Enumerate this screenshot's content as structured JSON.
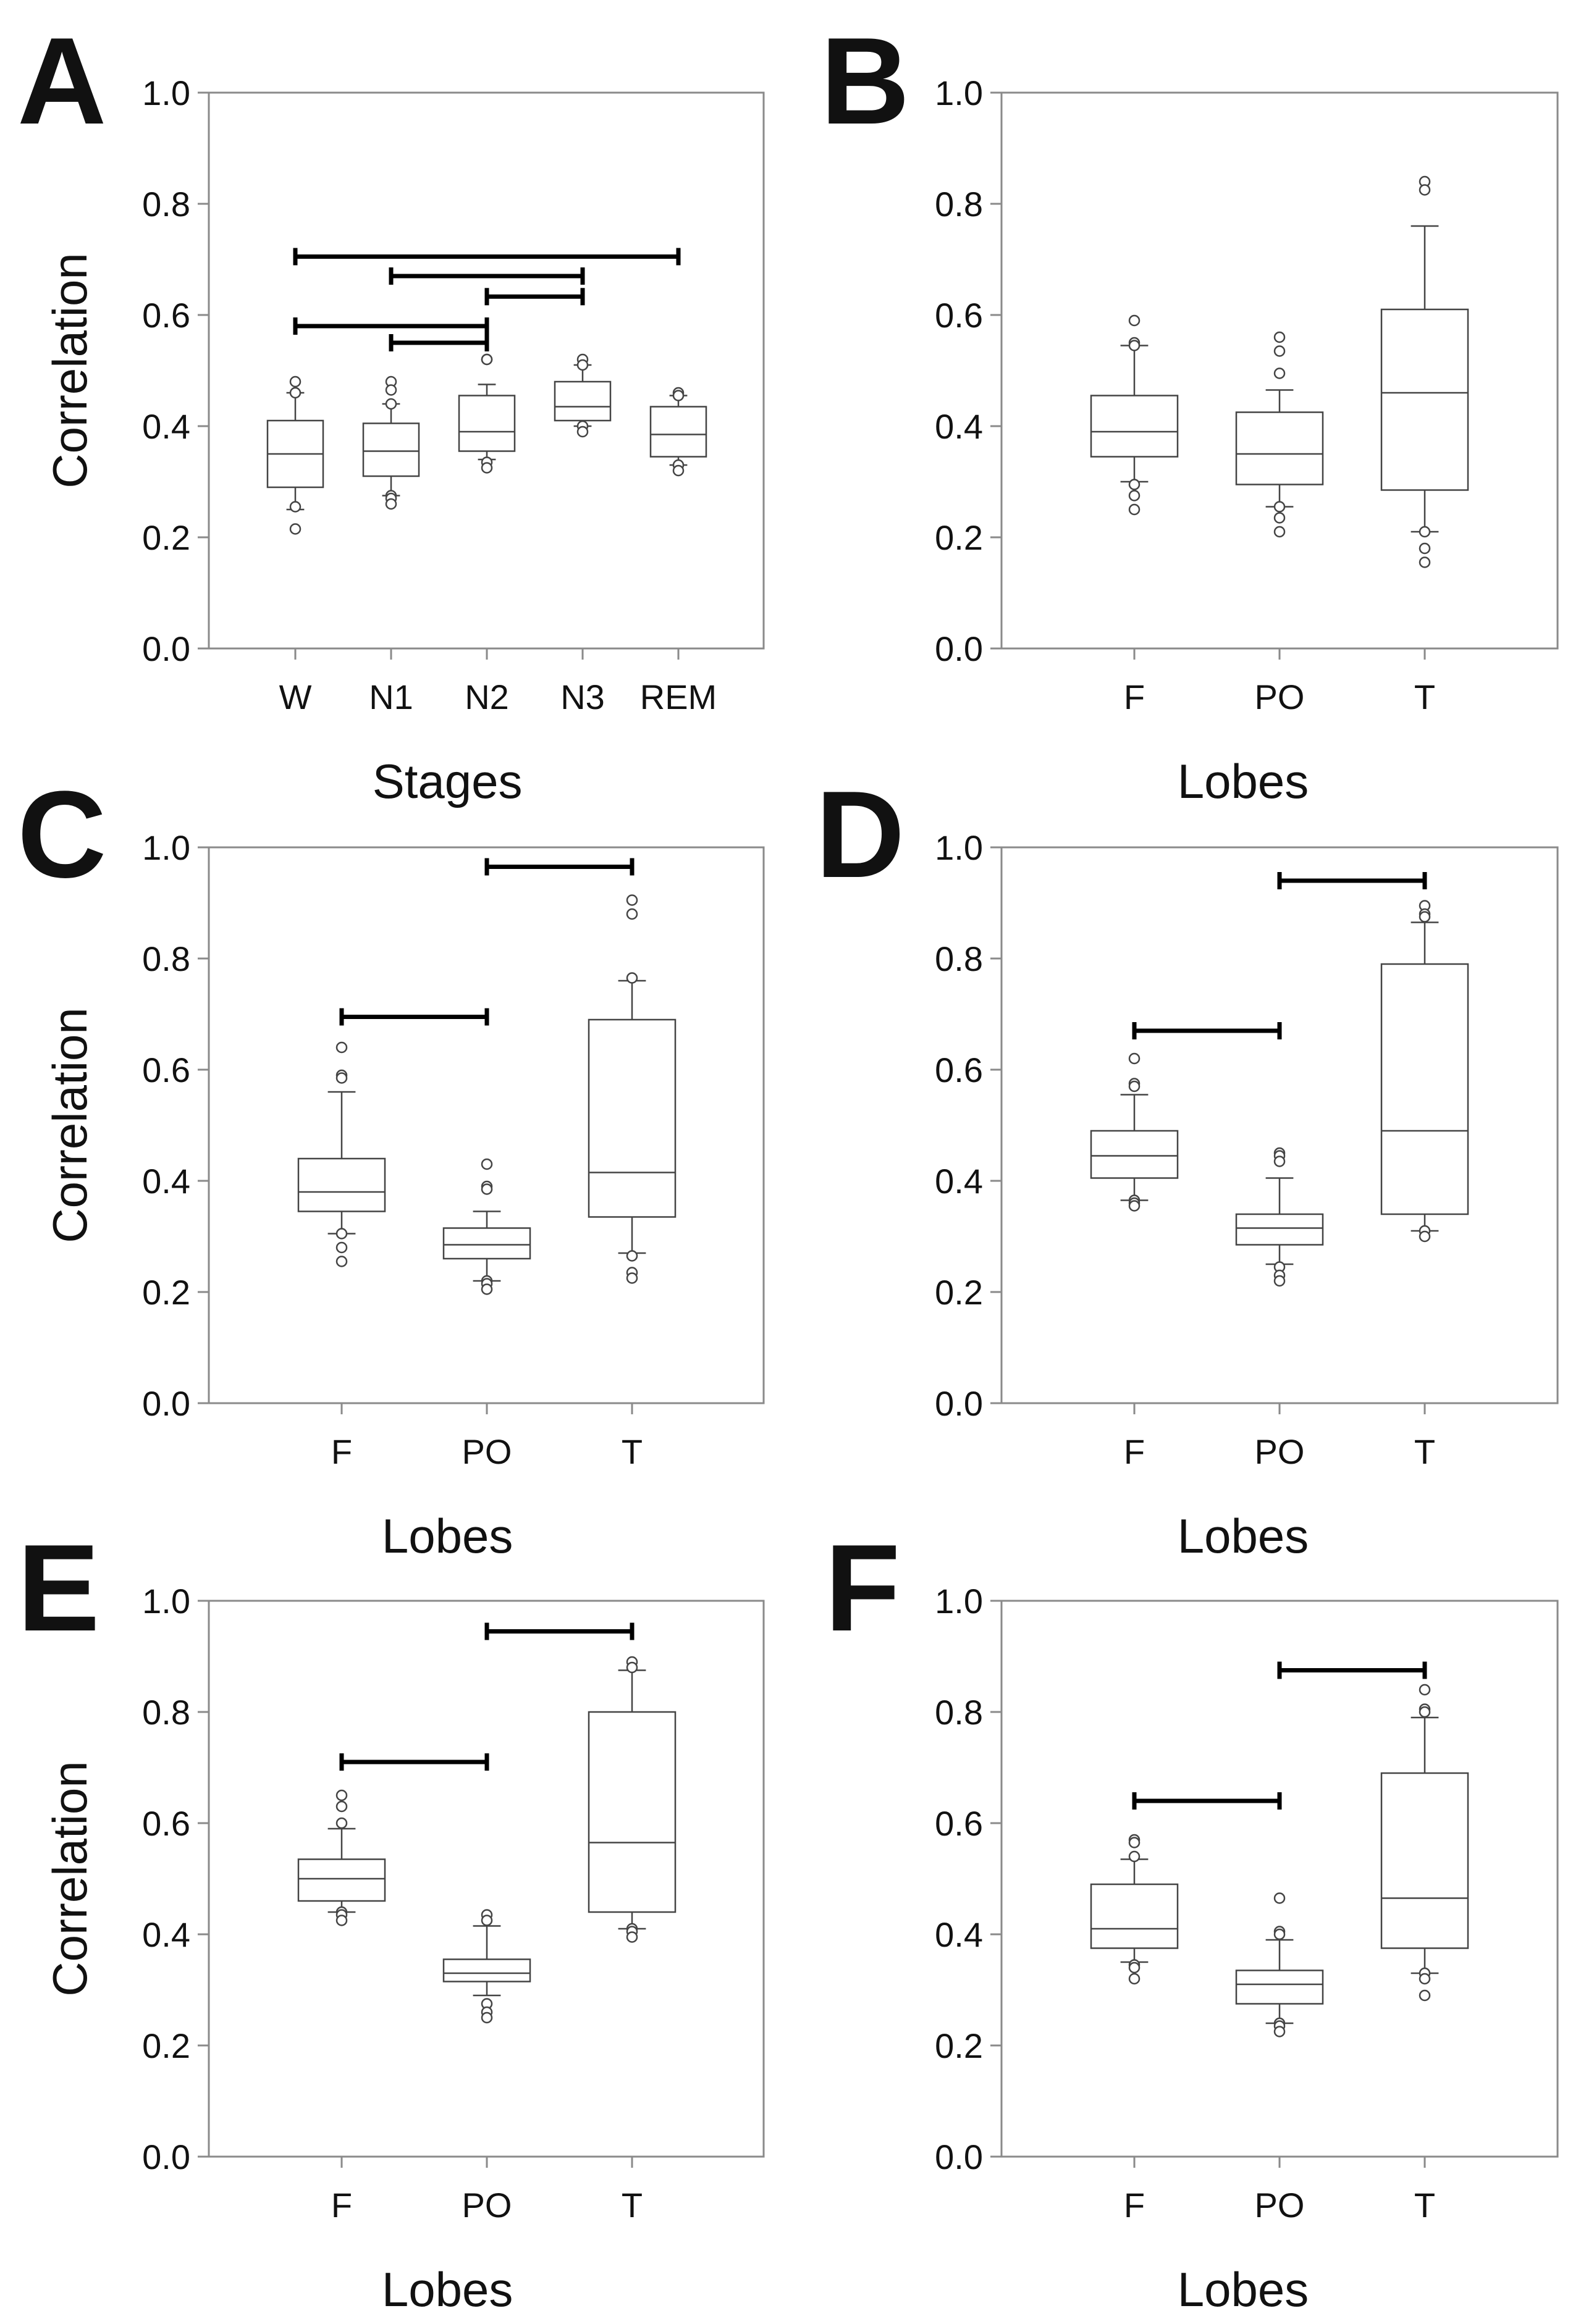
{
  "chart_data": [
    {
      "panel": "A",
      "type": "box",
      "xlabel": "Stages",
      "ylabel": "Correlation",
      "ylim": [
        0,
        1
      ],
      "yticks": [
        "0.0",
        "0.2",
        "0.4",
        "0.6",
        "0.8",
        "1.0"
      ],
      "categories": [
        "W",
        "N1",
        "N2",
        "N3",
        "REM"
      ],
      "boxes": [
        {
          "q1": 0.29,
          "median": 0.35,
          "q3": 0.41,
          "whisker_low": 0.25,
          "whisker_high": 0.46,
          "outliers": [
            0.48,
            0.46,
            0.255,
            0.215
          ]
        },
        {
          "q1": 0.31,
          "median": 0.355,
          "q3": 0.405,
          "whisker_low": 0.275,
          "whisker_high": 0.44,
          "outliers": [
            0.48,
            0.465,
            0.44,
            0.275,
            0.27,
            0.26
          ]
        },
        {
          "q1": 0.355,
          "median": 0.39,
          "q3": 0.455,
          "whisker_low": 0.34,
          "whisker_high": 0.475,
          "outliers": [
            0.52,
            0.52,
            0.335,
            0.325
          ]
        },
        {
          "q1": 0.41,
          "median": 0.435,
          "q3": 0.48,
          "whisker_low": 0.4,
          "whisker_high": 0.51,
          "outliers": [
            0.52,
            0.51,
            0.4,
            0.39
          ]
        },
        {
          "q1": 0.345,
          "median": 0.385,
          "q3": 0.435,
          "whisker_low": 0.33,
          "whisker_high": 0.455,
          "outliers": [
            0.46,
            0.455,
            0.33,
            0.32
          ]
        }
      ],
      "significance": [
        {
          "from": 0,
          "to": 4,
          "y": 0.705
        },
        {
          "from": 1,
          "to": 3,
          "y": 0.67
        },
        {
          "from": 2,
          "to": 3,
          "y": 0.633
        },
        {
          "from": 0,
          "to": 2,
          "y": 0.58
        },
        {
          "from": 1,
          "to": 2,
          "y": 0.55
        }
      ]
    },
    {
      "panel": "B",
      "type": "box",
      "xlabel": "Lobes",
      "ylabel": "",
      "ylim": [
        0,
        1
      ],
      "yticks": [
        "0.0",
        "0.2",
        "0.4",
        "0.6",
        "0.8",
        "1.0"
      ],
      "categories": [
        "F",
        "PO",
        "T"
      ],
      "boxes": [
        {
          "q1": 0.345,
          "median": 0.39,
          "q3": 0.455,
          "whisker_low": 0.3,
          "whisker_high": 0.545,
          "outliers": [
            0.59,
            0.55,
            0.545,
            0.295,
            0.275,
            0.25
          ]
        },
        {
          "q1": 0.295,
          "median": 0.35,
          "q3": 0.425,
          "whisker_low": 0.255,
          "whisker_high": 0.465,
          "outliers": [
            0.56,
            0.535,
            0.495,
            0.255,
            0.235,
            0.21
          ]
        },
        {
          "q1": 0.285,
          "median": 0.46,
          "q3": 0.61,
          "whisker_low": 0.21,
          "whisker_high": 0.76,
          "outliers": [
            0.84,
            0.825,
            0.21,
            0.18,
            0.155
          ]
        }
      ],
      "significance": []
    },
    {
      "panel": "C",
      "type": "box",
      "xlabel": "Lobes",
      "ylabel": "Correlation",
      "ylim": [
        0,
        1
      ],
      "yticks": [
        "0.0",
        "0.2",
        "0.4",
        "0.6",
        "0.8",
        "1.0"
      ],
      "categories": [
        "F",
        "PO",
        "T"
      ],
      "boxes": [
        {
          "q1": 0.345,
          "median": 0.38,
          "q3": 0.44,
          "whisker_low": 0.305,
          "whisker_high": 0.56,
          "outliers": [
            0.64,
            0.59,
            0.585,
            0.305,
            0.28,
            0.255
          ]
        },
        {
          "q1": 0.26,
          "median": 0.285,
          "q3": 0.315,
          "whisker_low": 0.22,
          "whisker_high": 0.345,
          "outliers": [
            0.43,
            0.39,
            0.385,
            0.22,
            0.215,
            0.205
          ]
        },
        {
          "q1": 0.335,
          "median": 0.415,
          "q3": 0.69,
          "whisker_low": 0.27,
          "whisker_high": 0.76,
          "outliers": [
            0.905,
            0.88,
            0.765,
            0.265,
            0.235,
            0.225
          ]
        }
      ],
      "significance": [
        {
          "from": 0,
          "to": 1,
          "y": 0.695
        },
        {
          "from": 1,
          "to": 2,
          "y": 0.965
        }
      ]
    },
    {
      "panel": "D",
      "type": "box",
      "xlabel": "Lobes",
      "ylabel": "",
      "ylim": [
        0,
        1
      ],
      "yticks": [
        "0.0",
        "0.2",
        "0.4",
        "0.6",
        "0.8",
        "1.0"
      ],
      "categories": [
        "F",
        "PO",
        "T"
      ],
      "boxes": [
        {
          "q1": 0.405,
          "median": 0.445,
          "q3": 0.49,
          "whisker_low": 0.365,
          "whisker_high": 0.555,
          "outliers": [
            0.62,
            0.575,
            0.57,
            0.365,
            0.36,
            0.355
          ]
        },
        {
          "q1": 0.285,
          "median": 0.315,
          "q3": 0.34,
          "whisker_low": 0.25,
          "whisker_high": 0.405,
          "outliers": [
            0.45,
            0.445,
            0.435,
            0.245,
            0.23,
            0.22
          ]
        },
        {
          "q1": 0.34,
          "median": 0.49,
          "q3": 0.79,
          "whisker_low": 0.31,
          "whisker_high": 0.865,
          "outliers": [
            0.895,
            0.88,
            0.875,
            0.31,
            0.3
          ]
        }
      ],
      "significance": [
        {
          "from": 0,
          "to": 1,
          "y": 0.67
        },
        {
          "from": 1,
          "to": 2,
          "y": 0.94
        }
      ]
    },
    {
      "panel": "E",
      "type": "box",
      "xlabel": "Lobes",
      "ylabel": "Correlation",
      "ylim": [
        0,
        1
      ],
      "yticks": [
        "0.0",
        "0.2",
        "0.4",
        "0.6",
        "0.8",
        "1.0"
      ],
      "categories": [
        "F",
        "PO",
        "T"
      ],
      "boxes": [
        {
          "q1": 0.46,
          "median": 0.5,
          "q3": 0.535,
          "whisker_low": 0.44,
          "whisker_high": 0.59,
          "outliers": [
            0.65,
            0.63,
            0.6,
            0.44,
            0.435,
            0.425
          ]
        },
        {
          "q1": 0.315,
          "median": 0.33,
          "q3": 0.355,
          "whisker_low": 0.29,
          "whisker_high": 0.415,
          "outliers": [
            0.435,
            0.425,
            0.275,
            0.26,
            0.25
          ]
        },
        {
          "q1": 0.44,
          "median": 0.565,
          "q3": 0.8,
          "whisker_low": 0.41,
          "whisker_high": 0.875,
          "outliers": [
            0.89,
            0.88,
            0.41,
            0.405,
            0.395
          ]
        }
      ],
      "significance": [
        {
          "from": 0,
          "to": 1,
          "y": 0.71
        },
        {
          "from": 1,
          "to": 2,
          "y": 0.945
        }
      ]
    },
    {
      "panel": "F",
      "type": "box",
      "xlabel": "Lobes",
      "ylabel": "",
      "ylim": [
        0,
        1
      ],
      "yticks": [
        "0.0",
        "0.2",
        "0.4",
        "0.6",
        "0.8",
        "1.0"
      ],
      "categories": [
        "F",
        "PO",
        "T"
      ],
      "boxes": [
        {
          "q1": 0.375,
          "median": 0.41,
          "q3": 0.49,
          "whisker_low": 0.35,
          "whisker_high": 0.535,
          "outliers": [
            0.57,
            0.565,
            0.54,
            0.345,
            0.34,
            0.32
          ]
        },
        {
          "q1": 0.275,
          "median": 0.31,
          "q3": 0.335,
          "whisker_low": 0.24,
          "whisker_high": 0.39,
          "outliers": [
            0.465,
            0.405,
            0.4,
            0.24,
            0.235,
            0.225
          ]
        },
        {
          "q1": 0.375,
          "median": 0.465,
          "q3": 0.69,
          "whisker_low": 0.33,
          "whisker_high": 0.79,
          "outliers": [
            0.84,
            0.805,
            0.8,
            0.33,
            0.32,
            0.29
          ]
        }
      ],
      "significance": [
        {
          "from": 0,
          "to": 1,
          "y": 0.64
        },
        {
          "from": 1,
          "to": 2,
          "y": 0.875
        }
      ]
    }
  ]
}
